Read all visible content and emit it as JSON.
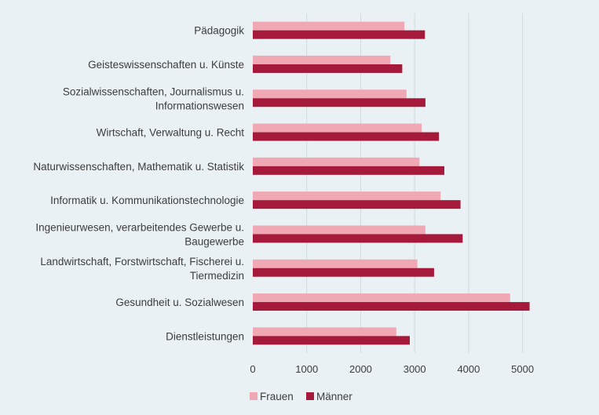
{
  "chart_data": {
    "type": "bar",
    "orientation": "horizontal",
    "title": "",
    "xlabel": "",
    "ylabel": "",
    "categories": [
      "Pädagogik",
      "Geisteswissenschaften u. Künste",
      "Sozialwissenschaften, Journalismus u. Informationswesen",
      "Wirtschaft, Verwaltung u. Recht",
      "Naturwissenschaften, Mathematik u. Statistik",
      "Informatik u. Kommunikationstechnologie",
      "Ingenieurwesen, verarbeitendes Gewerbe u. Baugewerbe",
      "Landwirtschaft, Forstwirtschaft, Fischerei u. Tiermedizin",
      "Gesundheit u. Sozialwesen",
      "Dienstleistungen"
    ],
    "category_lines": [
      [
        "Pädagogik"
      ],
      [
        "Geisteswissenschaften u. Künste"
      ],
      [
        "Sozialwissenschaften, Journalismus u.",
        "Informationswesen"
      ],
      [
        "Wirtschaft, Verwaltung u. Recht"
      ],
      [
        "Naturwissenschaften, Mathematik u. Statistik"
      ],
      [
        "Informatik u. Kommunikationstechnologie"
      ],
      [
        "Ingenieurwesen, verarbeitendes Gewerbe u.",
        "Baugewerbe"
      ],
      [
        "Landwirtschaft, Forstwirtschaft, Fischerei u.",
        "Tiermedizin"
      ],
      [
        "Gesundheit u. Sozialwesen"
      ],
      [
        "Dienstleistungen"
      ]
    ],
    "series": [
      {
        "name": "Frauen",
        "color": "#f0a9b4",
        "values": [
          2810,
          2550,
          2850,
          3130,
          3090,
          3480,
          3200,
          3050,
          4770,
          2660
        ]
      },
      {
        "name": "Männer",
        "color": "#a51a3a",
        "values": [
          3190,
          2770,
          3200,
          3450,
          3550,
          3850,
          3890,
          3360,
          5130,
          2910
        ]
      }
    ],
    "xlim": [
      0,
      5500
    ],
    "xticks": [
      0,
      1000,
      2000,
      3000,
      4000,
      5000
    ],
    "xtick_labels": [
      "0",
      "1000",
      "2000",
      "3000",
      "4000",
      "5000"
    ],
    "grid": "vertical",
    "legend": "bottom-center"
  }
}
